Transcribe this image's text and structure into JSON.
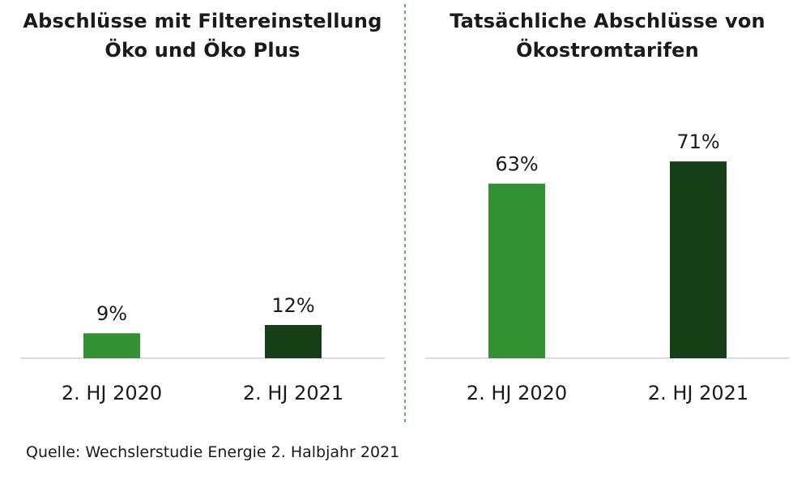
{
  "colors": {
    "series_2020": "#339133",
    "series_2021": "#173f17",
    "baseline": "#d0d0d0",
    "divider": "#3a8a3a"
  },
  "source": "Quelle: Wechslerstudie Energie 2. Halbjahr 2021",
  "chart_data": [
    {
      "type": "bar",
      "title_lines": [
        "Abschlüsse mit Filtereinstellung",
        "Öko und Öko Plus"
      ],
      "categories": [
        "2. HJ 2020",
        "2. HJ 2021"
      ],
      "values": [
        9,
        12
      ],
      "data_labels": [
        "9%",
        "12%"
      ],
      "ylim": [
        0,
        80
      ],
      "grid": false
    },
    {
      "type": "bar",
      "title_lines": [
        "Tatsächliche Abschlüsse von",
        "Ökostromtarifen"
      ],
      "categories": [
        "2. HJ 2020",
        "2. HJ 2021"
      ],
      "values": [
        63,
        71
      ],
      "data_labels": [
        "63%",
        "71%"
      ],
      "ylim": [
        0,
        80
      ],
      "grid": false
    }
  ]
}
